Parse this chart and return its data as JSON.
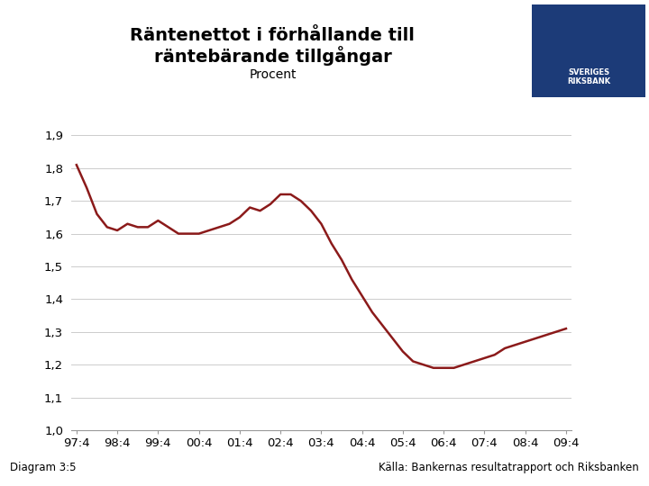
{
  "title_line1": "Räntenettot i förhållande till",
  "title_line2": "räntebärande tillgångar",
  "subtitle": "Procent",
  "footer_left": "Diagram 3:5",
  "footer_right": "Källa: Bankernas resultatrapport och Riksbanken",
  "line_color": "#8B1A1A",
  "line_width": 1.8,
  "background_color": "#FFFFFF",
  "footer_bar_color": "#1C3B78",
  "x_labels": [
    "97:4",
    "98:4",
    "99:4",
    "00:4",
    "01:4",
    "02:4",
    "03:4",
    "04:4",
    "05:4",
    "06:4",
    "07:4",
    "08:4",
    "09:4"
  ],
  "ylim": [
    1.0,
    1.95
  ],
  "yticks": [
    1.0,
    1.1,
    1.2,
    1.3,
    1.4,
    1.5,
    1.6,
    1.7,
    1.8,
    1.9
  ],
  "data_x": [
    0,
    1,
    2,
    3,
    4,
    5,
    6,
    7,
    8,
    9,
    10,
    11,
    12,
    13,
    14,
    15,
    16,
    17,
    18,
    19,
    20,
    21,
    22,
    23,
    24,
    25,
    26,
    27,
    28,
    29,
    30,
    31,
    32,
    33,
    34,
    35,
    36,
    37,
    38,
    39,
    40,
    41,
    42,
    43,
    44,
    45,
    46,
    47,
    48
  ],
  "data_y": [
    1.81,
    1.74,
    1.66,
    1.62,
    1.61,
    1.63,
    1.62,
    1.62,
    1.64,
    1.62,
    1.6,
    1.6,
    1.6,
    1.61,
    1.62,
    1.63,
    1.65,
    1.68,
    1.67,
    1.69,
    1.72,
    1.72,
    1.7,
    1.67,
    1.63,
    1.57,
    1.52,
    1.46,
    1.41,
    1.36,
    1.32,
    1.28,
    1.24,
    1.21,
    1.2,
    1.19,
    1.19,
    1.19,
    1.2,
    1.21,
    1.22,
    1.23,
    1.25,
    1.26,
    1.27,
    1.28,
    1.29,
    1.3,
    1.31
  ]
}
